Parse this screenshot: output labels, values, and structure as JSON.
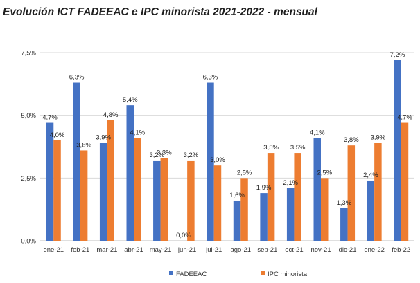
{
  "chart_data": {
    "type": "bar",
    "title": "Evolución ICT FADEEAC e IPC minorista 2021-2022 - mensual",
    "categories": [
      "ene-21",
      "feb-21",
      "mar-21",
      "abr-21",
      "may-21",
      "jun-21",
      "jul-21",
      "ago-21",
      "sep-21",
      "oct-21",
      "nov-21",
      "dic-21",
      "ene-22",
      "feb-22"
    ],
    "ylim": [
      0,
      7.5
    ],
    "yticks": [
      "0,0%",
      "2,5%",
      "5,0%",
      "7,5%"
    ],
    "ytick_values": [
      0,
      2.5,
      5,
      7.5
    ],
    "grid": "horizontal",
    "legend_position": "bottom",
    "series": [
      {
        "name": "FADEEAC",
        "color": "#4472C4",
        "values": [
          4.7,
          6.3,
          3.9,
          5.4,
          3.2,
          0.0,
          6.3,
          1.6,
          1.9,
          2.1,
          4.1,
          1.3,
          2.4,
          7.2
        ],
        "labels": [
          "4,7%",
          "6,3%",
          "3,9%",
          "5,4%",
          "3,2%",
          "0,0%",
          "6,3%",
          "1,6%",
          "1,9%",
          "2,1%",
          "4,1%",
          "1,3%",
          "2,4%",
          "7,2%"
        ]
      },
      {
        "name": "IPC minorista",
        "color": "#ED7D31",
        "values": [
          4.0,
          3.6,
          4.8,
          4.1,
          3.3,
          3.2,
          3.0,
          2.5,
          3.5,
          3.5,
          2.5,
          3.8,
          3.9,
          4.7
        ],
        "labels": [
          "4,0%",
          "3,6%",
          "4,8%",
          "4,1%",
          "3,3%",
          "3,2%",
          "3,0%",
          "2,5%",
          "3,5%",
          "3,5%",
          "2,5%",
          "3,8%",
          "3,9%",
          "4,7%"
        ]
      }
    ]
  }
}
